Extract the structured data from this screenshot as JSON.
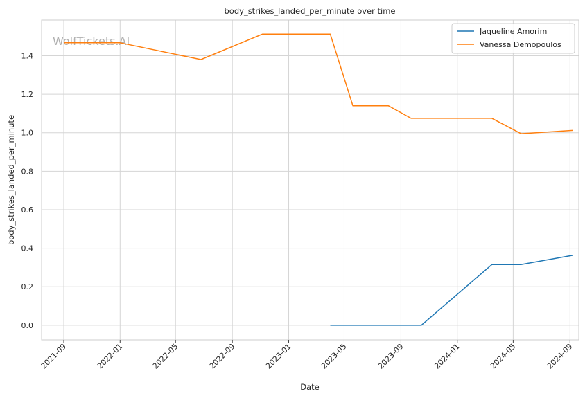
{
  "chart_data": {
    "type": "line",
    "title": "body_strikes_landed_per_minute over time",
    "xlabel": "Date",
    "ylabel": "body_strikes_landed_per_minute",
    "watermark": "WolfTickets.AI",
    "x_tick_labels": [
      "2021-09",
      "2022-01",
      "2022-05",
      "2022-09",
      "2023-01",
      "2023-05",
      "2023-09",
      "2024-01",
      "2024-05",
      "2024-09"
    ],
    "x_ticks": [
      "2021-09-01",
      "2022-01-01",
      "2022-05-01",
      "2022-09-01",
      "2023-01-01",
      "2023-05-01",
      "2023-09-01",
      "2024-01-01",
      "2024-05-01",
      "2024-09-01"
    ],
    "xlim": [
      "2021-07-15",
      "2024-09-20"
    ],
    "y_ticks": [
      0.0,
      0.2,
      0.4,
      0.6,
      0.8,
      1.0,
      1.2,
      1.4
    ],
    "y_tick_labels": [
      "0.0",
      "0.2",
      "0.4",
      "0.6",
      "0.8",
      "1.0",
      "1.2",
      "1.4"
    ],
    "ylim": [
      -0.076,
      1.585
    ],
    "grid": true,
    "legend_position": "top-right",
    "series": [
      {
        "name": "Jaqueline Amorim",
        "color": "#1f77b4",
        "points": [
          {
            "x": "2023-04-01",
            "y": 0.0
          },
          {
            "x": "2023-10-15",
            "y": 0.0
          },
          {
            "x": "2024-03-16",
            "y": 0.315
          },
          {
            "x": "2024-05-18",
            "y": 0.315
          },
          {
            "x": "2024-09-07",
            "y": 0.363
          }
        ]
      },
      {
        "name": "Vanessa Demopoulos",
        "color": "#ff7f0e",
        "points": [
          {
            "x": "2021-09-01",
            "y": 1.467
          },
          {
            "x": "2022-01-01",
            "y": 1.467
          },
          {
            "x": "2022-06-25",
            "y": 1.38
          },
          {
            "x": "2022-11-05",
            "y": 1.512
          },
          {
            "x": "2023-04-01",
            "y": 1.512
          },
          {
            "x": "2023-05-20",
            "y": 1.14
          },
          {
            "x": "2023-08-05",
            "y": 1.14
          },
          {
            "x": "2023-09-23",
            "y": 1.075
          },
          {
            "x": "2024-03-16",
            "y": 1.075
          },
          {
            "x": "2024-05-18",
            "y": 0.995
          },
          {
            "x": "2024-09-07",
            "y": 1.012
          }
        ]
      }
    ]
  }
}
